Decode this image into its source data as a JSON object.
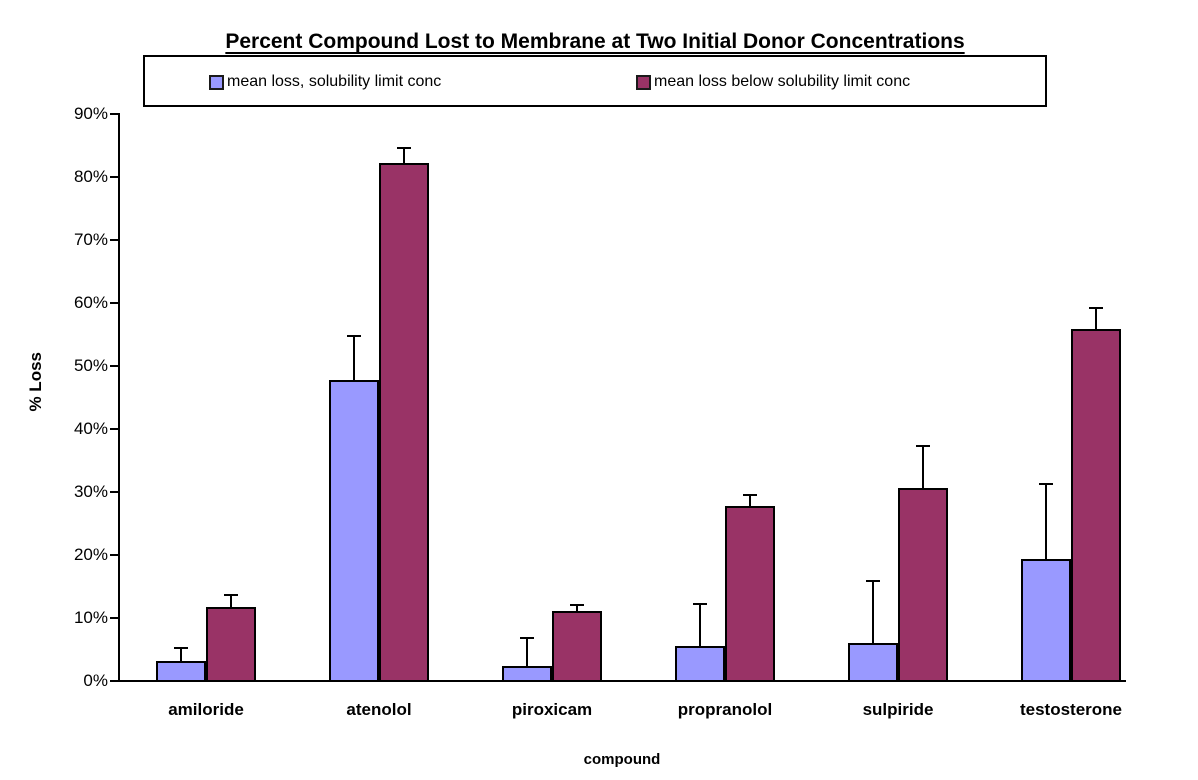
{
  "title": "Percent Compound Lost to Membrane at Two Initial Donor Concentrations",
  "legend": {
    "items": [
      {
        "label": "mean loss, solubility limit conc",
        "color": "#9999ff"
      },
      {
        "label": "mean loss below solubility limit conc",
        "color": "#993366"
      }
    ]
  },
  "y_axis": {
    "label": "% Loss",
    "ticks": [
      "0%",
      "10%",
      "20%",
      "30%",
      "40%",
      "50%",
      "60%",
      "70%",
      "80%",
      "90%"
    ]
  },
  "x_axis": {
    "label": "compound"
  },
  "chart_data": {
    "type": "bar",
    "title": "Percent Compound Lost to Membrane at Two Initial Donor Concentrations",
    "xlabel": "compound",
    "ylabel": "% Loss",
    "ylim": [
      0,
      90
    ],
    "y_tick_step": 10,
    "grid": false,
    "legend_position": "top",
    "units": "percent",
    "error_bars": "upper only, whisker cap at top",
    "categories": [
      "amiloride",
      "atenolol",
      "piroxicam",
      "propranolol",
      "sulpiride",
      "testosterone"
    ],
    "series": [
      {
        "name": "mean loss, solubility limit conc",
        "color": "#9999ff",
        "values": [
          3.2,
          47.8,
          2.4,
          5.5,
          6.0,
          19.4
        ],
        "error_bar_top": [
          5.2,
          54.7,
          6.9,
          12.2,
          15.9,
          31.2
        ]
      },
      {
        "name": "mean loss below solubility limit conc",
        "color": "#993366",
        "values": [
          11.8,
          82.2,
          11.1,
          27.8,
          30.6,
          55.9
        ],
        "error_bar_top": [
          13.7,
          84.6,
          12.0,
          29.6,
          37.3,
          59.2
        ]
      }
    ]
  }
}
